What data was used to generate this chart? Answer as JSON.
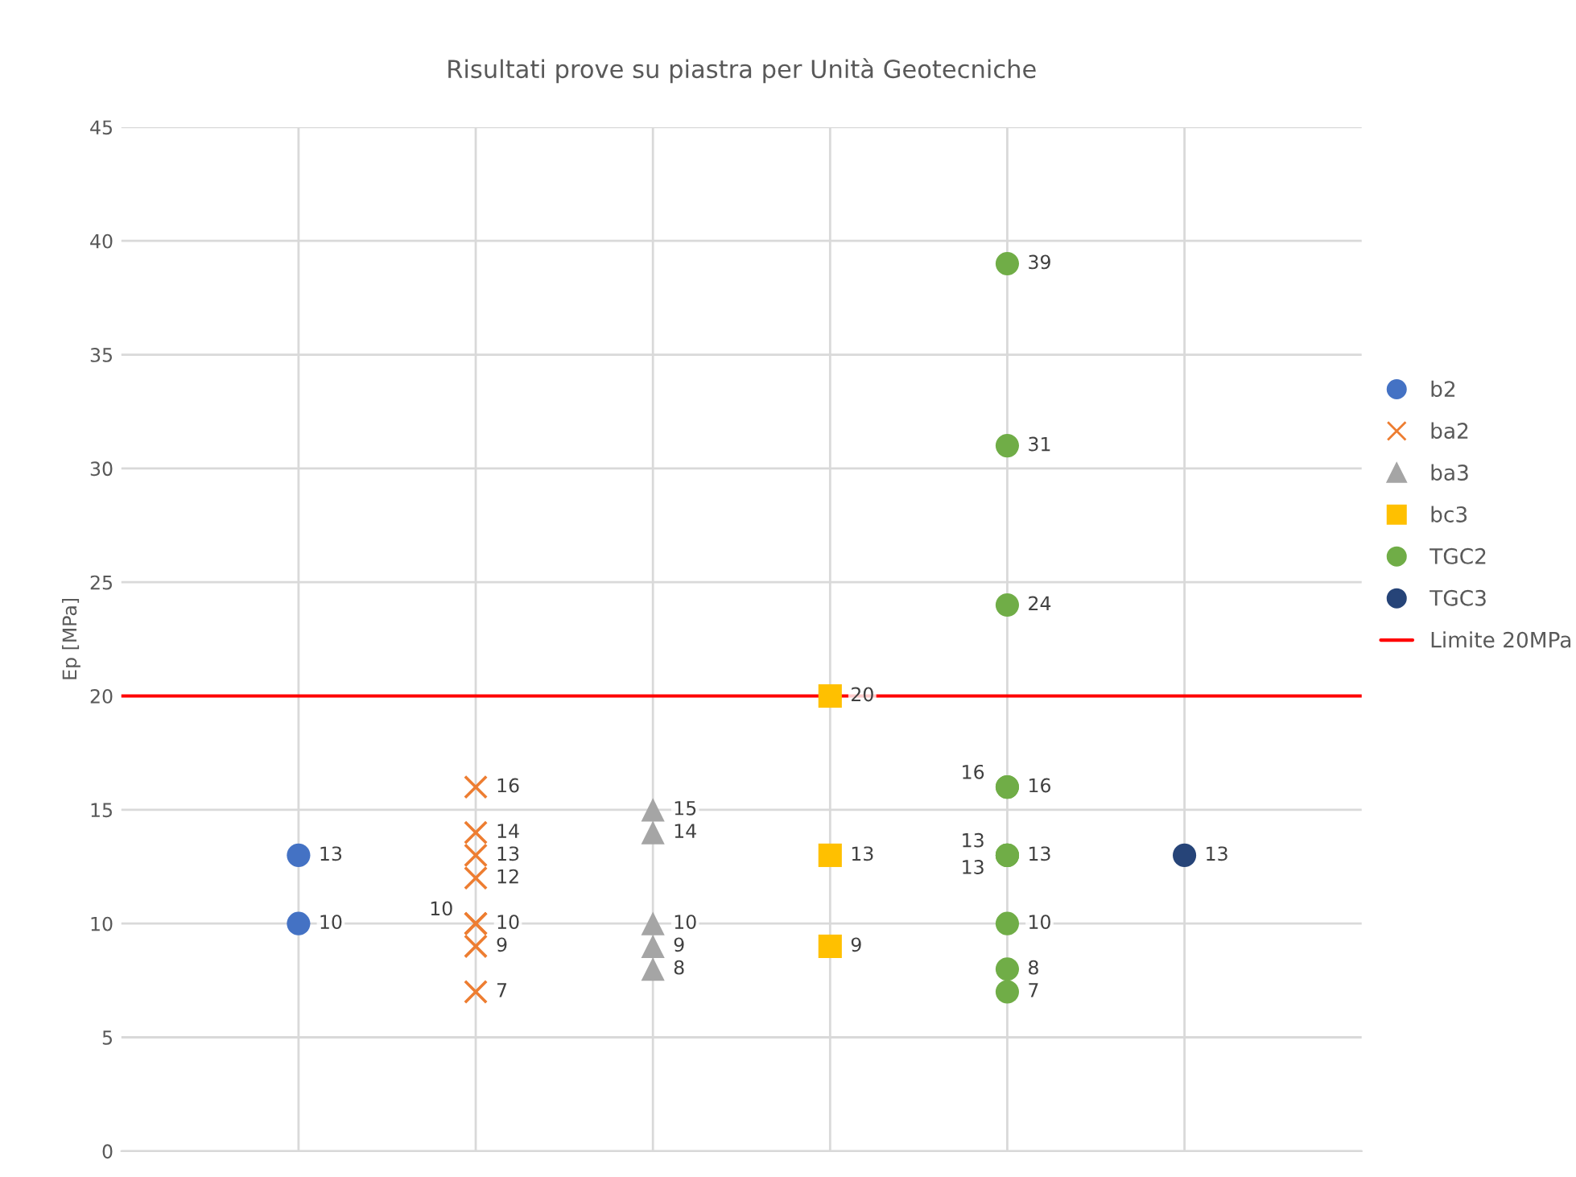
{
  "chart_data": {
    "type": "scatter",
    "title": "Risultati prove su piastra per Unità Geotecniche",
    "ylabel": "Ep [MPa]",
    "categories": [
      null,
      null,
      null,
      null,
      null,
      null
    ],
    "series": [
      {
        "name": "b2",
        "color": "#4472c4",
        "marker": "circle",
        "values": [
          13,
          null,
          null,
          null,
          null,
          null
        ]
      },
      {
        "color": "#4472c4",
        "marker": "circle",
        "values": [
          10,
          null,
          null,
          null,
          null,
          null
        ]
      },
      {
        "name": "ba2",
        "color": "#ed7d31",
        "marker": "cross",
        "values": [
          null,
          16,
          null,
          null,
          null,
          null
        ]
      },
      {
        "color": "#ed7d31",
        "marker": "cross",
        "values": [
          null,
          14,
          null,
          null,
          null,
          null
        ]
      },
      {
        "color": "#ed7d31",
        "marker": "cross",
        "values": [
          null,
          13,
          null,
          null,
          null,
          null
        ]
      },
      {
        "color": "#ed7d31",
        "marker": "cross",
        "values": [
          null,
          12,
          null,
          null,
          null,
          null
        ]
      },
      {
        "color": "#ed7d31",
        "marker": "cross",
        "values": [
          null,
          10,
          null,
          null,
          null,
          null
        ]
      },
      {
        "color": "#ed7d31",
        "marker": "cross",
        "values": [
          null,
          10,
          null,
          null,
          null,
          null
        ]
      },
      {
        "color": "#ed7d31",
        "marker": "cross",
        "values": [
          null,
          9,
          null,
          null,
          null,
          null
        ]
      },
      {
        "color": "#ed7d31",
        "marker": "cross",
        "values": [
          null,
          7,
          null,
          null,
          null,
          null
        ]
      },
      {
        "name": "ba3",
        "color": "#a5a5a5",
        "marker": "triangle",
        "values": [
          null,
          null,
          15,
          null,
          null,
          null
        ]
      },
      {
        "color": "#a5a5a5",
        "marker": "triangle",
        "values": [
          null,
          null,
          14,
          null,
          null,
          null
        ]
      },
      {
        "color": "#a5a5a5",
        "marker": "triangle",
        "values": [
          null,
          null,
          10,
          null,
          null,
          null
        ]
      },
      {
        "color": "#a5a5a5",
        "marker": "triangle",
        "values": [
          null,
          null,
          9,
          null,
          null,
          null
        ]
      },
      {
        "color": "#a5a5a5",
        "marker": "triangle",
        "values": [
          null,
          null,
          8,
          null,
          null,
          null
        ]
      },
      {
        "name": "bc3",
        "color": "#ffc000",
        "marker": "square",
        "values": [
          null,
          null,
          null,
          20,
          null,
          null
        ]
      },
      {
        "color": "#ffc000",
        "marker": "square",
        "values": [
          null,
          null,
          null,
          13,
          null,
          null
        ]
      },
      {
        "color": "#ffc000",
        "marker": "square",
        "values": [
          null,
          null,
          null,
          9,
          null,
          null
        ]
      },
      {
        "name": "TGC2",
        "color": "#70ad47",
        "marker": "circle",
        "values": [
          null,
          null,
          null,
          null,
          39,
          null
        ]
      },
      {
        "color": "#70ad47",
        "marker": "circle",
        "values": [
          null,
          null,
          null,
          null,
          31,
          null
        ]
      },
      {
        "color": "#70ad47",
        "marker": "circle",
        "values": [
          null,
          null,
          null,
          null,
          24,
          null
        ]
      },
      {
        "color": "#70ad47",
        "marker": "circle",
        "values": [
          null,
          null,
          null,
          null,
          16,
          null
        ]
      },
      {
        "color": "#70ad47",
        "marker": "circle",
        "values": [
          null,
          null,
          null,
          null,
          16,
          null
        ]
      },
      {
        "color": "#70ad47",
        "marker": "circle",
        "values": [
          null,
          null,
          null,
          null,
          13,
          null
        ]
      },
      {
        "color": "#70ad47",
        "marker": "circle",
        "values": [
          null,
          null,
          null,
          null,
          13,
          null
        ]
      },
      {
        "color": "#70ad47",
        "marker": "circle",
        "values": [
          null,
          null,
          null,
          null,
          13,
          null
        ]
      },
      {
        "color": "#70ad47",
        "marker": "circle",
        "values": [
          null,
          null,
          null,
          null,
          10,
          null
        ]
      },
      {
        "color": "#70ad47",
        "marker": "circle",
        "values": [
          null,
          null,
          null,
          null,
          8,
          null
        ]
      },
      {
        "color": "#70ad47",
        "marker": "circle",
        "values": [
          null,
          null,
          null,
          null,
          7,
          null
        ]
      },
      {
        "name": "TGC3",
        "color": "#264478",
        "marker": "circle",
        "values": [
          null,
          null,
          null,
          null,
          null,
          13
        ]
      }
    ],
    "ref_lines": [
      {
        "axis": "y",
        "value": 20,
        "label": "Limite 20MPa",
        "color": "#ff0000",
        "line_style": "solid"
      }
    ],
    "ylim": [
      0,
      45
    ],
    "yticks": [
      0,
      5,
      10,
      15,
      20,
      25,
      30,
      35,
      40,
      45
    ],
    "tick_labels": "y",
    "grid": true,
    "legend": "right",
    "data_labels": true
  }
}
